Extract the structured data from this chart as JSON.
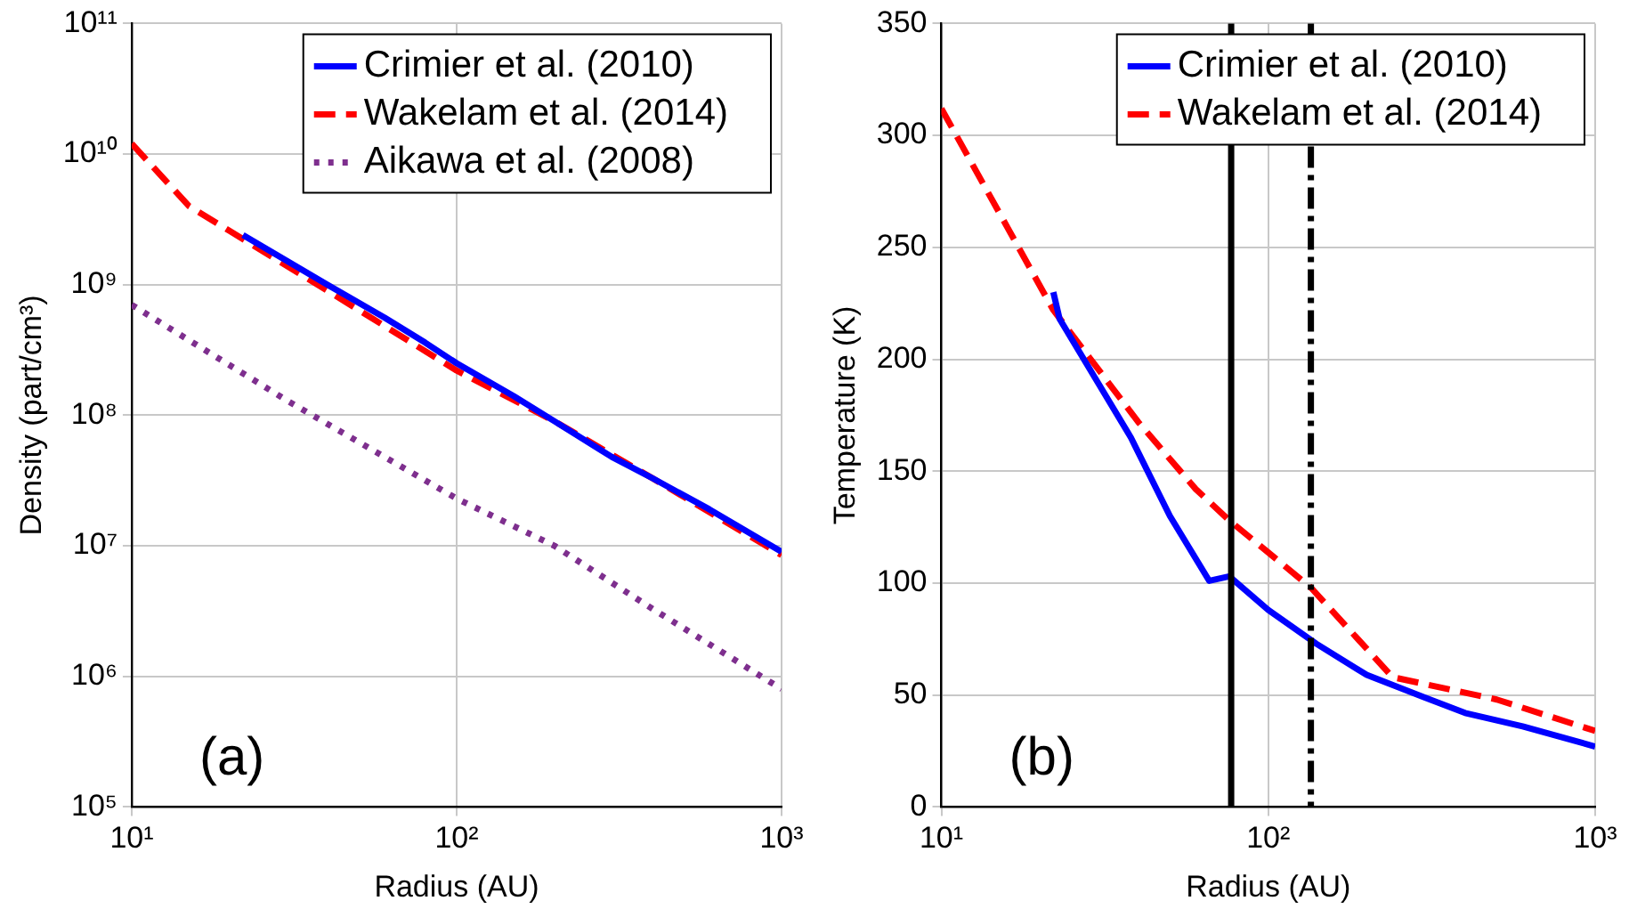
{
  "chart_data": [
    {
      "type": "line",
      "xlabel": "Radius (AU)",
      "ylabel": "Density (part/cm³)",
      "log": "xy",
      "grid": true,
      "legend": "top right",
      "marker": "none",
      "annotations": [
        "(a)"
      ],
      "xlim": [
        10,
        1000
      ],
      "xticks": [
        {
          "value": 10,
          "label": "10¹"
        },
        {
          "value": 100,
          "label": "10²"
        },
        {
          "value": 1000,
          "label": "10³"
        }
      ],
      "ylim": [
        100000,
        100000000000
      ],
      "yticks": [
        {
          "value": 100000,
          "label": "10⁵"
        },
        {
          "value": 1000000,
          "label": "10⁶"
        },
        {
          "value": 10000000,
          "label": "10⁷"
        },
        {
          "value": 100000000,
          "label": "10⁸"
        },
        {
          "value": 1000000000,
          "label": "10⁹"
        },
        {
          "value": 10000000000,
          "label": "10¹⁰"
        },
        {
          "value": 100000000000,
          "label": "10¹¹"
        }
      ],
      "series": [
        {
          "name": "Crimier et al. (2010)",
          "color": "#0000ff",
          "line_style": "solid",
          "x": [
            22,
            40,
            60,
            80,
            100,
            150,
            200,
            300,
            400,
            600,
            1000
          ],
          "values": [
            2400000000,
            1000000000,
            560000000,
            360000000,
            250000000,
            140000000,
            90000000,
            48000000,
            33000000,
            19000000,
            9000000
          ]
        },
        {
          "name": "Wakelam et al. (2014)",
          "color": "#ff0000",
          "line_style": "dashed",
          "x": [
            10,
            15,
            40,
            100,
            200,
            400,
            1000
          ],
          "values": [
            12000000000,
            4000000000,
            900000000,
            220000000,
            90000000,
            33000000,
            8500000
          ]
        },
        {
          "name": "Aikawa et al. (2008)",
          "color": "#7e2f8e",
          "line_style": "dotted",
          "x": [
            10,
            30,
            100,
            200,
            400,
            1000
          ],
          "values": [
            700000000,
            130000000,
            23000000,
            10000000,
            3300000,
            800000
          ]
        }
      ]
    },
    {
      "type": "line",
      "xlabel": "Radius (AU)",
      "ylabel": "Temperature (K)",
      "log": "x",
      "grid": true,
      "legend": "top right",
      "marker": "none",
      "annotations": [
        "(b)"
      ],
      "xlim": [
        10,
        1000
      ],
      "xticks": [
        {
          "value": 10,
          "label": "10¹"
        },
        {
          "value": 100,
          "label": "10²"
        },
        {
          "value": 1000,
          "label": "10³"
        }
      ],
      "ylim": [
        0,
        350
      ],
      "yticks": [
        0,
        50,
        100,
        150,
        200,
        250,
        300,
        350
      ],
      "ref_lines": [
        {
          "axis": "x",
          "value": 77,
          "label": null,
          "color": "#000000",
          "line_style": "solid"
        },
        {
          "axis": "x",
          "value": 135,
          "label": null,
          "color": "#000000",
          "line_style": "dashed"
        }
      ],
      "series": [
        {
          "name": "Crimier et al. (2010)",
          "color": "#0000ff",
          "line_style": "solid",
          "x": [
            22,
            23,
            30,
            38,
            50,
            66,
            76,
            100,
            140,
            200,
            300,
            400,
            600,
            1000
          ],
          "values": [
            230,
            218,
            190,
            165,
            130,
            101,
            103,
            88,
            73,
            59,
            49,
            42,
            36,
            27
          ]
        },
        {
          "name": "Wakelam et al. (2014)",
          "color": "#ff0000",
          "line_style": "dashed",
          "x": [
            10,
            22,
            40,
            60,
            76,
            135,
            240,
            500,
            1000
          ],
          "values": [
            312,
            222,
            172,
            142,
            128,
            98,
            58,
            48,
            34
          ]
        }
      ]
    }
  ]
}
